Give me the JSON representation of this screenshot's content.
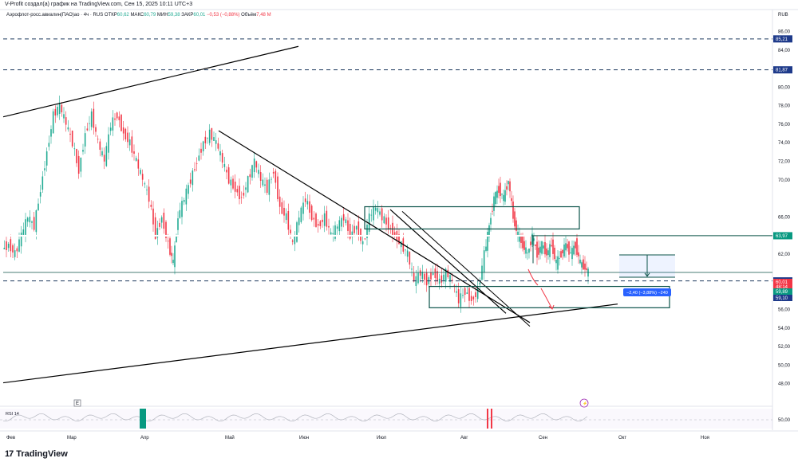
{
  "caption": "V-Profit создал(а) график на TradingView.com, Сен 15, 2025 10:11 UTC+3",
  "legend": {
    "symbol": "Аэрофлот-росс.авиалин(ПАО)ао · 4ч · RUS",
    "o_label": "ОТКР",
    "o": "60,62",
    "h_label": "МАКС",
    "h": "60,79",
    "l_label": "МИН",
    "l": "59,38",
    "c_label": "ЗАКР",
    "c": "60,01",
    "chg": "−0,53 (−0,88%)",
    "vol_label": "Объём",
    "vol": "7,48 М"
  },
  "currency": "RUB",
  "footer": {
    "logo": "17",
    "brand": "TradingView"
  },
  "colors": {
    "up": "#22ab94",
    "down": "#f23645",
    "line_dashed": "#1e3a5f",
    "box": "#0b5349",
    "tag_blue": "#1e3a8a",
    "tag_red": "#f23645",
    "tag_green": "#089981"
  },
  "chart_data": {
    "type": "candlestick",
    "ylim": [
      46,
      87
    ],
    "ytick_labels": [
      "86,00",
      "84,00",
      "80,00",
      "78,00",
      "76,00",
      "74,00",
      "72,00",
      "70,00",
      "66,00",
      "64,00",
      "62,00",
      "56,00",
      "54,00",
      "52,00",
      "50,00",
      "48,00"
    ],
    "ytick_values": [
      86,
      84,
      80,
      78,
      76,
      74,
      72,
      70,
      66,
      64,
      62,
      56,
      54,
      52,
      50,
      48
    ],
    "x_labels": [
      "Фев",
      "Мар",
      "Апр",
      "Май",
      "Июн",
      "Июл",
      "Авг",
      "Сен",
      "Окт",
      "Ноя"
    ],
    "price_path": [
      [
        0,
        62.5
      ],
      [
        8,
        63
      ],
      [
        16,
        62
      ],
      [
        24,
        64
      ],
      [
        32,
        66
      ],
      [
        40,
        65
      ],
      [
        48,
        69
      ],
      [
        56,
        73
      ],
      [
        64,
        77
      ],
      [
        72,
        78
      ],
      [
        80,
        76
      ],
      [
        88,
        74
      ],
      [
        96,
        71
      ],
      [
        104,
        75
      ],
      [
        112,
        77
      ],
      [
        120,
        74
      ],
      [
        128,
        72
      ],
      [
        136,
        76
      ],
      [
        144,
        77
      ],
      [
        152,
        75
      ],
      [
        160,
        74
      ],
      [
        168,
        72
      ],
      [
        176,
        70
      ],
      [
        184,
        68
      ],
      [
        192,
        64
      ],
      [
        200,
        66
      ],
      [
        208,
        63
      ],
      [
        214,
        61
      ],
      [
        220,
        66
      ],
      [
        228,
        68
      ],
      [
        236,
        70
      ],
      [
        244,
        72
      ],
      [
        252,
        74
      ],
      [
        260,
        75
      ],
      [
        268,
        74
      ],
      [
        276,
        72
      ],
      [
        284,
        70
      ],
      [
        292,
        69
      ],
      [
        300,
        68
      ],
      [
        308,
        70
      ],
      [
        316,
        72
      ],
      [
        324,
        70
      ],
      [
        332,
        69
      ],
      [
        340,
        71
      ],
      [
        348,
        67
      ],
      [
        356,
        66
      ],
      [
        364,
        63
      ],
      [
        372,
        66
      ],
      [
        380,
        68
      ],
      [
        388,
        66
      ],
      [
        396,
        65
      ],
      [
        404,
        66
      ],
      [
        412,
        64
      ],
      [
        420,
        65
      ],
      [
        428,
        66
      ],
      [
        436,
        64
      ],
      [
        444,
        65
      ],
      [
        452,
        63
      ],
      [
        460,
        66
      ],
      [
        468,
        67
      ],
      [
        476,
        66
      ],
      [
        484,
        65
      ],
      [
        492,
        64
      ],
      [
        500,
        63
      ],
      [
        508,
        62
      ],
      [
        516,
        59
      ],
      [
        524,
        60
      ],
      [
        532,
        59
      ],
      [
        540,
        60
      ],
      [
        548,
        59
      ],
      [
        556,
        60
      ],
      [
        564,
        59
      ],
      [
        572,
        57
      ],
      [
        580,
        58
      ],
      [
        588,
        57
      ],
      [
        596,
        58
      ],
      [
        604,
        62
      ],
      [
        610,
        65
      ],
      [
        616,
        68
      ],
      [
        622,
        69
      ],
      [
        628,
        68
      ],
      [
        634,
        70
      ],
      [
        640,
        66
      ],
      [
        646,
        64
      ],
      [
        652,
        63
      ],
      [
        658,
        62
      ],
      [
        664,
        64
      ],
      [
        670,
        62
      ],
      [
        676,
        63
      ],
      [
        682,
        62
      ],
      [
        688,
        63
      ],
      [
        694,
        61
      ],
      [
        700,
        62
      ],
      [
        706,
        63
      ],
      [
        712,
        62
      ],
      [
        718,
        63
      ],
      [
        724,
        61
      ],
      [
        730,
        60.5
      ],
      [
        734,
        60
      ]
    ],
    "horizontal_levels": [
      {
        "value": 85.21,
        "label": "85,21",
        "style": "dashed"
      },
      {
        "value": 81.87,
        "label": "81,87",
        "style": "dashed"
      },
      {
        "value": 63.97,
        "label": "63,97",
        "style": "solid"
      },
      {
        "value": 59.1,
        "label": "59,10",
        "style": "dashed"
      }
    ],
    "price_tags": [
      {
        "value": 60.01,
        "label": "60,01",
        "sub": "48:14",
        "color": "red"
      },
      {
        "value": 59.89,
        "label": "59,89",
        "color": "green"
      },
      {
        "value": 59.1,
        "label": "59,10",
        "color": "blue"
      }
    ],
    "trend_lines": [
      {
        "from": [
          0,
          76.8
        ],
        "to": [
          370,
          84.4
        ]
      },
      {
        "from": [
          270,
          75.3
        ],
        "to": [
          660,
          54.6
        ]
      },
      {
        "from": [
          0,
          48.1
        ],
        "to": [
          770,
          56.6
        ]
      },
      {
        "from": [
          485,
          66.8
        ],
        "to": [
          630,
          55.6
        ]
      }
    ],
    "boxes": [
      {
        "x0": 453,
        "x1": 722,
        "top": 67.1,
        "bottom": 64.7
      },
      {
        "x0": 534,
        "x1": 835,
        "top": 58.5,
        "bottom": 56.2
      }
    ],
    "measure": {
      "label": "−2,40 (−3,88%) −240",
      "from": 61.9,
      "to": 59.5
    },
    "rsi_label": "RSI 14",
    "rsi_ytick": "50,00",
    "markers": [
      "E"
    ]
  }
}
